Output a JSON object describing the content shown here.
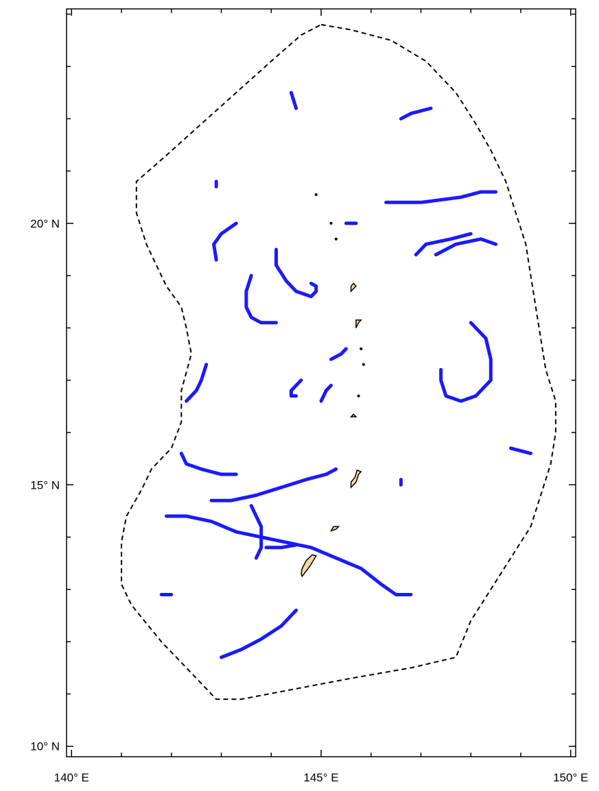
{
  "map": {
    "lon_range": [
      139.9,
      150.1
    ],
    "lat_range": [
      9.8,
      24.1
    ],
    "x_ticks": [
      {
        "value": 140,
        "label": "140° E"
      },
      {
        "value": 145,
        "label": "145° E"
      },
      {
        "value": 150,
        "label": "150° E"
      }
    ],
    "y_ticks": [
      {
        "value": 10,
        "label": "10° N"
      },
      {
        "value": 15,
        "label": "15° N"
      },
      {
        "value": 20,
        "label": "20° N"
      }
    ],
    "minor_tick_step": 1,
    "colors": {
      "track": "#1a1aff",
      "land": "#f5d7a8",
      "boundary": "#000000",
      "frame": "#000000"
    },
    "eez_boundary": [
      [
        145.0,
        23.8
      ],
      [
        145.6,
        23.7
      ],
      [
        146.4,
        23.5
      ],
      [
        147.1,
        23.1
      ],
      [
        147.7,
        22.5
      ],
      [
        148.1,
        21.9
      ],
      [
        148.4,
        21.4
      ],
      [
        148.7,
        20.8
      ],
      [
        148.9,
        20.2
      ],
      [
        149.1,
        19.6
      ],
      [
        149.2,
        19.0
      ],
      [
        149.3,
        18.4
      ],
      [
        149.4,
        17.8
      ],
      [
        149.5,
        17.2
      ],
      [
        149.7,
        16.6
      ],
      [
        149.7,
        16.0
      ],
      [
        149.6,
        15.4
      ],
      [
        149.4,
        14.8
      ],
      [
        149.2,
        14.2
      ],
      [
        148.8,
        13.6
      ],
      [
        148.4,
        13.0
      ],
      [
        148.0,
        12.4
      ],
      [
        147.7,
        11.7
      ],
      [
        146.8,
        11.5
      ],
      [
        145.6,
        11.3
      ],
      [
        144.5,
        11.1
      ],
      [
        143.4,
        10.9
      ],
      [
        142.9,
        10.9
      ],
      [
        142.4,
        11.4
      ],
      [
        141.8,
        12.0
      ],
      [
        141.2,
        12.7
      ],
      [
        141.0,
        13.1
      ],
      [
        141.0,
        13.9
      ],
      [
        141.1,
        14.4
      ],
      [
        141.4,
        14.9
      ],
      [
        141.6,
        15.3
      ],
      [
        142.0,
        15.7
      ],
      [
        142.2,
        16.2
      ],
      [
        142.2,
        16.8
      ],
      [
        142.4,
        17.5
      ],
      [
        142.3,
        18.0
      ],
      [
        142.2,
        18.4
      ],
      [
        141.9,
        18.8
      ],
      [
        141.7,
        19.2
      ],
      [
        141.5,
        19.6
      ],
      [
        141.3,
        20.2
      ],
      [
        141.3,
        20.8
      ],
      [
        141.9,
        21.3
      ],
      [
        142.6,
        21.9
      ],
      [
        143.3,
        22.5
      ],
      [
        144.0,
        23.1
      ],
      [
        144.6,
        23.6
      ],
      [
        145.0,
        23.8
      ]
    ],
    "tracks": [
      [
        [
          144.4,
          22.5
        ],
        [
          144.45,
          22.35
        ],
        [
          144.5,
          22.2
        ]
      ],
      [
        [
          146.6,
          22.0
        ],
        [
          146.8,
          22.1
        ],
        [
          147.2,
          22.2
        ]
      ],
      [
        [
          142.9,
          20.8
        ],
        [
          142.9,
          20.7
        ]
      ],
      [
        [
          142.9,
          19.3
        ],
        [
          142.85,
          19.6
        ],
        [
          143.0,
          19.8
        ],
        [
          143.3,
          20.0
        ]
      ],
      [
        [
          144.1,
          19.5
        ],
        [
          144.1,
          19.2
        ],
        [
          144.3,
          18.9
        ],
        [
          144.5,
          18.7
        ],
        [
          144.8,
          18.6
        ],
        [
          144.9,
          18.7
        ],
        [
          144.9,
          18.8
        ],
        [
          144.8,
          18.85
        ]
      ],
      [
        [
          143.6,
          19.0
        ],
        [
          143.5,
          18.7
        ],
        [
          143.5,
          18.4
        ],
        [
          143.6,
          18.2
        ],
        [
          143.8,
          18.1
        ],
        [
          144.1,
          18.1
        ]
      ],
      [
        [
          145.5,
          20.0
        ],
        [
          145.7,
          20.0
        ]
      ],
      [
        [
          146.3,
          20.4
        ],
        [
          147.0,
          20.4
        ],
        [
          147.8,
          20.5
        ],
        [
          148.2,
          20.6
        ],
        [
          148.5,
          20.6
        ]
      ],
      [
        [
          146.9,
          19.4
        ],
        [
          147.1,
          19.6
        ],
        [
          147.6,
          19.7
        ],
        [
          148.0,
          19.8
        ]
      ],
      [
        [
          147.3,
          19.4
        ],
        [
          147.7,
          19.6
        ],
        [
          148.2,
          19.7
        ],
        [
          148.5,
          19.6
        ]
      ],
      [
        [
          148.0,
          18.1
        ],
        [
          148.3,
          17.8
        ],
        [
          148.4,
          17.4
        ],
        [
          148.4,
          17.0
        ],
        [
          148.1,
          16.7
        ],
        [
          147.8,
          16.6
        ],
        [
          147.5,
          16.7
        ],
        [
          147.4,
          17.0
        ],
        [
          147.4,
          17.2
        ]
      ],
      [
        [
          142.7,
          17.3
        ],
        [
          142.6,
          17.0
        ],
        [
          142.5,
          16.8
        ],
        [
          142.3,
          16.6
        ]
      ],
      [
        [
          144.6,
          17.0
        ],
        [
          144.5,
          16.9
        ],
        [
          144.4,
          16.8
        ],
        [
          144.4,
          16.7
        ],
        [
          144.5,
          16.7
        ]
      ],
      [
        [
          145.0,
          16.6
        ],
        [
          145.1,
          16.8
        ],
        [
          145.2,
          16.9
        ]
      ],
      [
        [
          145.2,
          17.4
        ],
        [
          145.4,
          17.5
        ],
        [
          145.5,
          17.6
        ]
      ],
      [
        [
          142.2,
          15.6
        ],
        [
          142.3,
          15.4
        ],
        [
          142.6,
          15.3
        ],
        [
          143.0,
          15.2
        ],
        [
          143.3,
          15.2
        ]
      ],
      [
        [
          142.8,
          14.7
        ],
        [
          143.2,
          14.7
        ],
        [
          143.7,
          14.8
        ],
        [
          144.2,
          14.95
        ],
        [
          144.7,
          15.1
        ],
        [
          145.1,
          15.2
        ],
        [
          145.3,
          15.3
        ]
      ],
      [
        [
          143.6,
          14.6
        ],
        [
          143.7,
          14.4
        ],
        [
          143.8,
          14.2
        ],
        [
          143.8,
          14.0
        ],
        [
          143.8,
          13.8
        ],
        [
          143.7,
          13.6
        ]
      ],
      [
        [
          141.9,
          14.4
        ],
        [
          142.3,
          14.4
        ],
        [
          142.8,
          14.3
        ],
        [
          143.3,
          14.1
        ],
        [
          143.8,
          14.0
        ],
        [
          144.3,
          13.9
        ],
        [
          144.8,
          13.8
        ],
        [
          145.3,
          13.6
        ],
        [
          145.8,
          13.4
        ],
        [
          146.2,
          13.1
        ],
        [
          146.5,
          12.9
        ],
        [
          146.8,
          12.9
        ]
      ],
      [
        [
          143.9,
          13.8
        ],
        [
          144.2,
          13.8
        ],
        [
          144.5,
          13.85
        ]
      ],
      [
        [
          141.8,
          12.9
        ],
        [
          142.0,
          12.9
        ]
      ],
      [
        [
          143.0,
          11.7
        ],
        [
          143.4,
          11.85
        ],
        [
          143.8,
          12.05
        ],
        [
          144.2,
          12.3
        ],
        [
          144.5,
          12.6
        ]
      ],
      [
        [
          146.6,
          15.1
        ],
        [
          146.6,
          15.0
        ]
      ],
      [
        [
          148.8,
          15.7
        ],
        [
          149.2,
          15.6
        ]
      ]
    ],
    "islands": [
      [
        [
          144.62,
          13.25
        ],
        [
          144.78,
          13.45
        ],
        [
          144.9,
          13.64
        ],
        [
          144.82,
          13.66
        ],
        [
          144.7,
          13.55
        ],
        [
          144.62,
          13.4
        ],
        [
          144.6,
          13.3
        ]
      ],
      [
        [
          145.6,
          14.95
        ],
        [
          145.7,
          15.05
        ],
        [
          145.75,
          15.2
        ],
        [
          145.8,
          15.25
        ],
        [
          145.72,
          15.28
        ],
        [
          145.68,
          15.15
        ],
        [
          145.6,
          15.05
        ]
      ],
      [
        [
          145.2,
          14.12
        ],
        [
          145.3,
          14.15
        ],
        [
          145.35,
          14.2
        ],
        [
          145.25,
          14.2
        ]
      ],
      [
        [
          145.6,
          16.3
        ],
        [
          145.7,
          16.3
        ],
        [
          145.65,
          16.35
        ]
      ],
      [
        [
          145.7,
          18.0
        ],
        [
          145.75,
          18.1
        ],
        [
          145.8,
          18.15
        ],
        [
          145.7,
          18.15
        ]
      ],
      [
        [
          145.6,
          18.7
        ],
        [
          145.7,
          18.8
        ],
        [
          145.65,
          18.85
        ],
        [
          145.6,
          18.8
        ]
      ]
    ],
    "islets": [
      [
        144.9,
        20.55
      ],
      [
        145.2,
        20.0
      ],
      [
        145.3,
        19.7
      ],
      [
        145.8,
        17.6
      ],
      [
        145.85,
        17.3
      ],
      [
        145.75,
        16.7
      ]
    ]
  }
}
